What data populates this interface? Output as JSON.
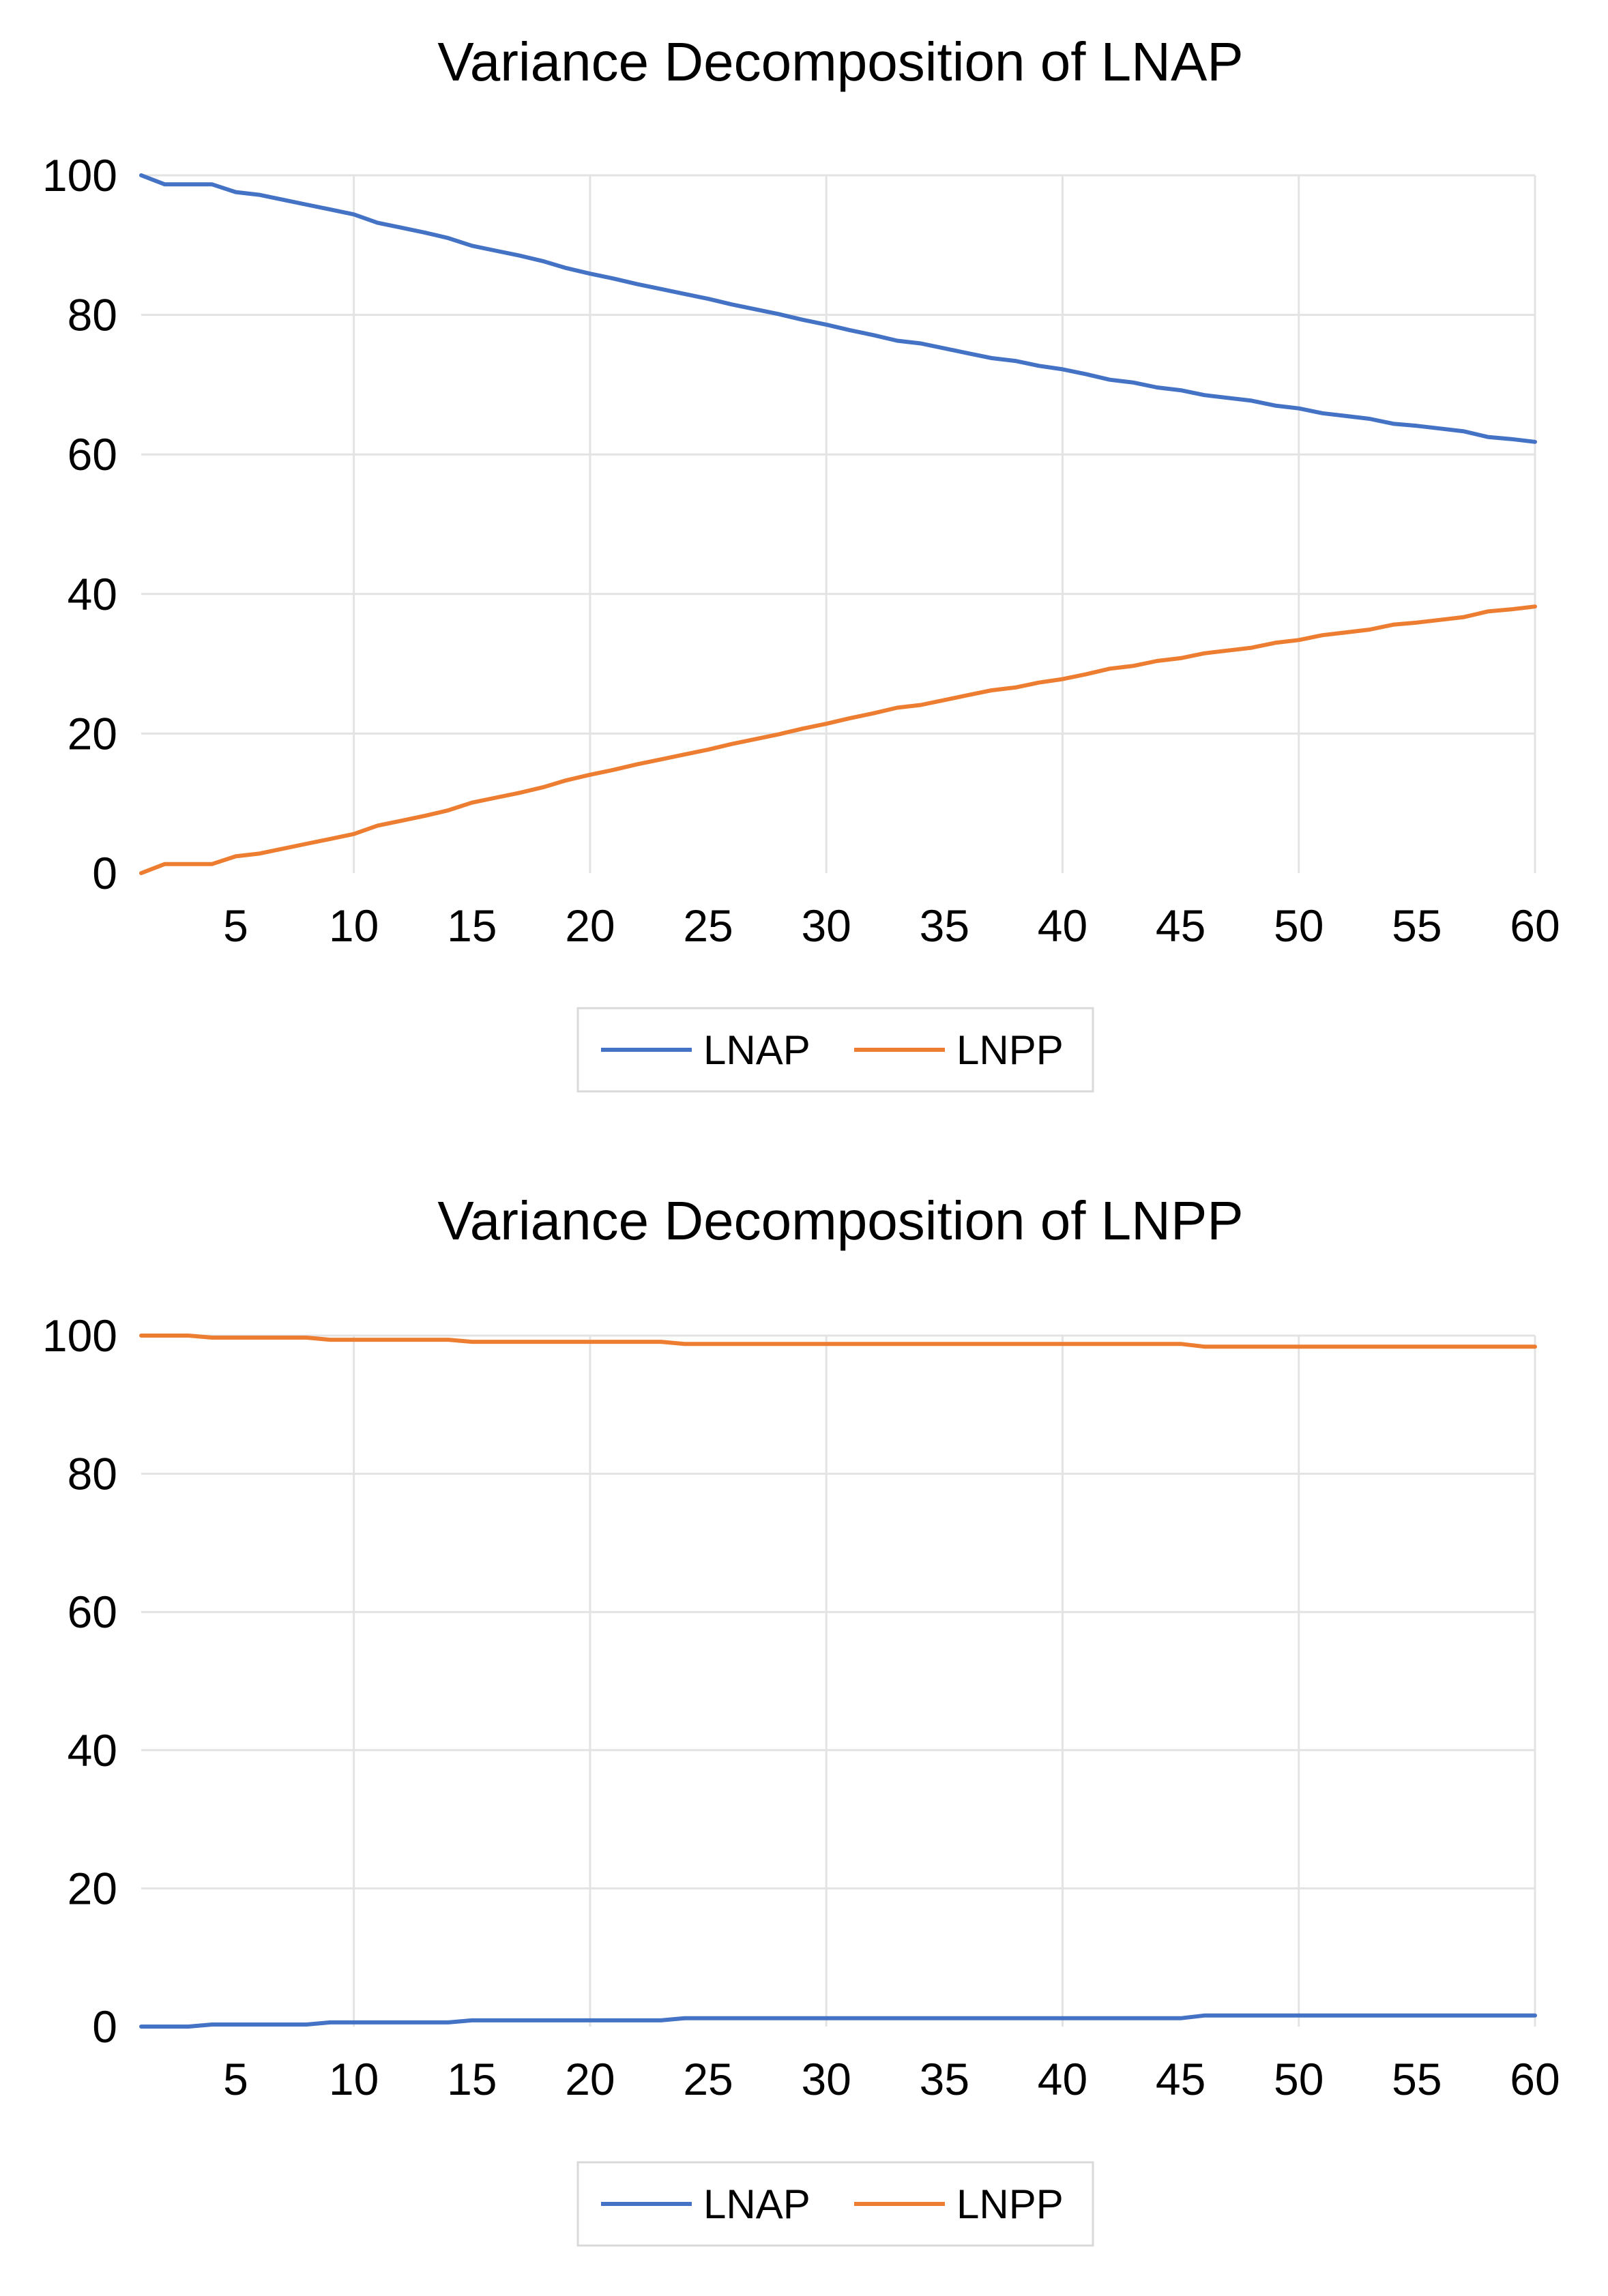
{
  "chart_data": [
    {
      "type": "line",
      "title": "Variance Decomposition of LNAP",
      "xlabel": "",
      "ylabel": "",
      "xlim": [
        1,
        60
      ],
      "ylim": [
        0,
        100
      ],
      "x_ticks": [
        5,
        10,
        15,
        20,
        25,
        30,
        35,
        40,
        45,
        50,
        55,
        60
      ],
      "y_ticks": [
        0,
        20,
        40,
        60,
        80,
        100
      ],
      "x": [
        1,
        2,
        3,
        4,
        5,
        6,
        7,
        8,
        9,
        10,
        11,
        12,
        13,
        14,
        15,
        16,
        17,
        18,
        19,
        20,
        21,
        22,
        23,
        24,
        25,
        26,
        27,
        28,
        29,
        30,
        31,
        32,
        33,
        34,
        35,
        36,
        37,
        38,
        39,
        40,
        41,
        42,
        43,
        44,
        45,
        46,
        47,
        48,
        49,
        50,
        51,
        52,
        53,
        54,
        55,
        56,
        57,
        58,
        59,
        60
      ],
      "series": [
        {
          "name": "LNAP",
          "color": "#4472C4",
          "values": [
            100,
            98.7,
            98.7,
            98.7,
            97.6,
            97.2,
            96.5,
            95.8,
            95.1,
            94.4,
            93.2,
            92.5,
            91.8,
            91.0,
            89.9,
            89.2,
            88.5,
            87.7,
            86.7,
            85.9,
            85.2,
            84.4,
            83.7,
            83.0,
            82.3,
            81.5,
            80.8,
            80.1,
            79.3,
            78.6,
            77.8,
            77.1,
            76.3,
            75.9,
            75.2,
            74.5,
            73.8,
            73.4,
            72.7,
            72.2,
            71.5,
            70.7,
            70.3,
            69.6,
            69.2,
            68.5,
            68.1,
            67.7,
            67.0,
            66.6,
            65.9,
            65.5,
            65.1,
            64.4,
            64.1,
            63.7,
            63.3,
            62.5,
            62.2,
            61.8
          ]
        },
        {
          "name": "LNPP",
          "color": "#ED7D31",
          "values": [
            0,
            1.3,
            1.3,
            1.3,
            2.4,
            2.8,
            3.5,
            4.2,
            4.9,
            5.6,
            6.8,
            7.5,
            8.2,
            9.0,
            10.1,
            10.8,
            11.5,
            12.3,
            13.3,
            14.1,
            14.8,
            15.6,
            16.3,
            17.0,
            17.7,
            18.5,
            19.2,
            19.9,
            20.7,
            21.4,
            22.2,
            22.9,
            23.7,
            24.1,
            24.8,
            25.5,
            26.2,
            26.6,
            27.3,
            27.8,
            28.5,
            29.3,
            29.7,
            30.4,
            30.8,
            31.5,
            31.9,
            32.3,
            33.0,
            33.4,
            34.1,
            34.5,
            34.9,
            35.6,
            35.9,
            36.3,
            36.7,
            37.5,
            37.8,
            38.2
          ]
        }
      ],
      "legend": [
        "LNAP",
        "LNPP"
      ],
      "legend_position": "bottom"
    },
    {
      "type": "line",
      "title": "Variance Decomposition of LNPP",
      "xlabel": "",
      "ylabel": "",
      "xlim": [
        1,
        60
      ],
      "ylim": [
        0,
        100
      ],
      "x_ticks": [
        5,
        10,
        15,
        20,
        25,
        30,
        35,
        40,
        45,
        50,
        55,
        60
      ],
      "y_ticks": [
        0,
        20,
        40,
        60,
        80,
        100
      ],
      "x": [
        1,
        2,
        3,
        4,
        5,
        6,
        7,
        8,
        9,
        10,
        11,
        12,
        13,
        14,
        15,
        16,
        17,
        18,
        19,
        20,
        21,
        22,
        23,
        24,
        25,
        26,
        27,
        28,
        29,
        30,
        31,
        32,
        33,
        34,
        35,
        36,
        37,
        38,
        39,
        40,
        41,
        42,
        43,
        44,
        45,
        46,
        47,
        48,
        49,
        50,
        51,
        52,
        53,
        54,
        55,
        56,
        57,
        58,
        59,
        60
      ],
      "series": [
        {
          "name": "LNAP",
          "color": "#4472C4",
          "values": [
            0,
            0,
            0,
            0.3,
            0.3,
            0.3,
            0.3,
            0.3,
            0.6,
            0.6,
            0.6,
            0.6,
            0.6,
            0.6,
            0.9,
            0.9,
            0.9,
            0.9,
            0.9,
            0.9,
            0.9,
            0.9,
            0.9,
            1.2,
            1.2,
            1.2,
            1.2,
            1.2,
            1.2,
            1.2,
            1.2,
            1.2,
            1.2,
            1.2,
            1.2,
            1.2,
            1.2,
            1.2,
            1.2,
            1.2,
            1.2,
            1.2,
            1.2,
            1.2,
            1.2,
            1.6,
            1.6,
            1.6,
            1.6,
            1.6,
            1.6,
            1.6,
            1.6,
            1.6,
            1.6,
            1.6,
            1.6,
            1.6,
            1.6,
            1.6
          ]
        },
        {
          "name": "LNPP",
          "color": "#ED7D31",
          "values": [
            100,
            100,
            100,
            99.7,
            99.7,
            99.7,
            99.7,
            99.7,
            99.4,
            99.4,
            99.4,
            99.4,
            99.4,
            99.4,
            99.1,
            99.1,
            99.1,
            99.1,
            99.1,
            99.1,
            99.1,
            99.1,
            99.1,
            98.8,
            98.8,
            98.8,
            98.8,
            98.8,
            98.8,
            98.8,
            98.8,
            98.8,
            98.8,
            98.8,
            98.8,
            98.8,
            98.8,
            98.8,
            98.8,
            98.8,
            98.8,
            98.8,
            98.8,
            98.8,
            98.8,
            98.4,
            98.4,
            98.4,
            98.4,
            98.4,
            98.4,
            98.4,
            98.4,
            98.4,
            98.4,
            98.4,
            98.4,
            98.4,
            98.4,
            98.4
          ]
        }
      ],
      "legend": [
        "LNAP",
        "LNPP"
      ],
      "legend_position": "bottom"
    }
  ]
}
